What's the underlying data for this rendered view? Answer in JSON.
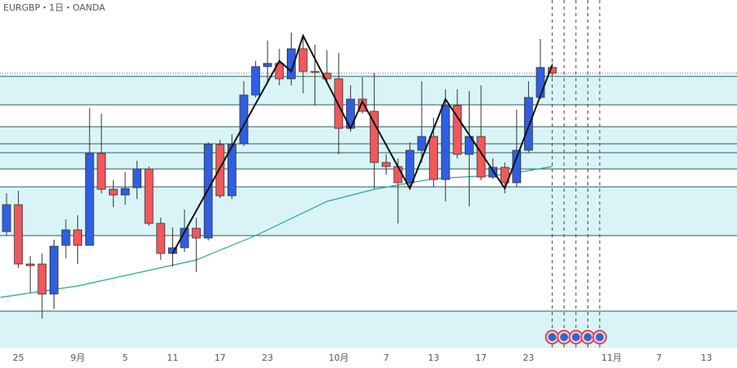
{
  "chart_data": {
    "type": "candlestick",
    "title": "EURGBP・1日・OANDA",
    "xlim": [
      -0.55,
      61.575
    ],
    "ylim": [
      0,
      428
    ],
    "xticks": [
      {
        "value": 1,
        "label": "25"
      },
      {
        "value": 6,
        "label": "9月"
      },
      {
        "value": 10,
        "label": "5"
      },
      {
        "value": 14,
        "label": "11"
      },
      {
        "value": 18,
        "label": "17"
      },
      {
        "value": 22,
        "label": "23"
      },
      {
        "value": 28,
        "label": "10月"
      },
      {
        "value": 32,
        "label": "7"
      },
      {
        "value": 36,
        "label": "13"
      },
      {
        "value": 40,
        "label": "17"
      },
      {
        "value": 44,
        "label": "23"
      },
      {
        "value": 51,
        "label": "11月"
      },
      {
        "value": 55,
        "label": "7"
      },
      {
        "value": 59,
        "label": "13"
      }
    ],
    "up_color": "#2f5fe0",
    "down_color": "#f0585c",
    "open": [
      143,
      176,
      103,
      103,
      66,
      126,
      145,
      126,
      239,
      195,
      188,
      197,
      220,
      153,
      116,
      123,
      147,
      135,
      250,
      187,
      251,
      311,
      346,
      350,
      331,
      368,
      340,
      338,
      331,
      270,
      306,
      291,
      228,
      223,
      203,
      243,
      260,
      207,
      298,
      238,
      260,
      210,
      222,
      203,
      243,
      308,
      345
    ],
    "high": [
      190,
      193,
      113,
      116,
      133,
      158,
      163,
      295,
      288,
      206,
      216,
      230,
      223,
      160,
      148,
      170,
      160,
      253,
      256,
      263,
      328,
      353,
      378,
      368,
      388,
      383,
      373,
      366,
      363,
      323,
      333,
      338,
      238,
      233,
      253,
      328,
      283,
      318,
      318,
      316,
      323,
      233,
      228,
      293,
      328,
      380,
      350
    ],
    "low": [
      138,
      98,
      68,
      36,
      48,
      110,
      103,
      126,
      190,
      173,
      176,
      183,
      150,
      108,
      100,
      118,
      93,
      132,
      184,
      183,
      248,
      308,
      328,
      323,
      323,
      313,
      298,
      328,
      238,
      266,
      288,
      196,
      213,
      153,
      198,
      228,
      198,
      180,
      233,
      174,
      206,
      208,
      190,
      198,
      240,
      306,
      333
    ],
    "close": [
      176,
      103,
      101,
      66,
      125,
      145,
      126,
      239,
      195,
      188,
      196,
      220,
      153,
      116,
      123,
      147,
      135,
      250,
      187,
      250,
      311,
      346,
      350,
      331,
      368,
      340,
      339,
      331,
      270,
      306,
      291,
      228,
      223,
      203,
      243,
      260,
      207,
      298,
      238,
      260,
      210,
      222,
      203,
      243,
      308,
      345,
      338
    ],
    "zones": [
      [
        299,
        334
      ],
      [
        220,
        272
      ],
      [
        138,
        198
      ],
      [
        0,
        45
      ]
    ],
    "levels": [
      334,
      299,
      272,
      251,
      240,
      220,
      198,
      138,
      45
    ],
    "level_color": "#2d5a60",
    "current_price": 338,
    "moving_average": {
      "color": "#26a69a",
      "x": [
        -0.5,
        6,
        16,
        21,
        27,
        31,
        36,
        42,
        46
      ],
      "values": [
        62,
        76,
        108,
        138,
        180,
        195,
        208,
        213,
        223
      ]
    },
    "zigzag": {
      "color": "#111111",
      "x": [
        14,
        23,
        24,
        25,
        29,
        30,
        34,
        37,
        42,
        46
      ],
      "values": [
        116,
        353,
        340,
        384,
        270,
        303,
        196,
        306,
        196,
        348
      ]
    },
    "events": [
      46,
      47,
      48,
      49,
      50
    ]
  }
}
